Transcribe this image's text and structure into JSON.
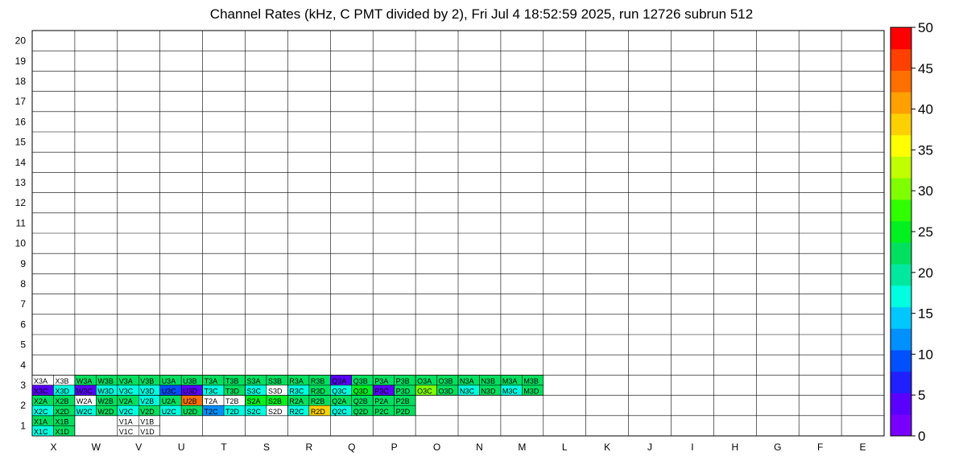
{
  "chart_data": {
    "type": "heatmap",
    "title": "Channel Rates (kHz, C PMT divided by 2), Fri Jul  4 18:52:59 2025, run 12726 subrun 512",
    "columns": [
      "X",
      "W",
      "V",
      "U",
      "T",
      "S",
      "R",
      "Q",
      "P",
      "O",
      "N",
      "M",
      "L",
      "K",
      "J",
      "I",
      "H",
      "G",
      "F",
      "E"
    ],
    "rows": [
      "1",
      "2",
      "3",
      "4",
      "5",
      "6",
      "7",
      "8",
      "9",
      "10",
      "11",
      "12",
      "13",
      "14",
      "15",
      "16",
      "17",
      "18",
      "19",
      "20"
    ],
    "zlim": [
      0,
      50
    ],
    "colorbar_ticks": [
      "0",
      "5",
      "10",
      "15",
      "20",
      "25",
      "30",
      "35",
      "40",
      "45",
      "50"
    ],
    "colormap": [
      "#7800ff",
      "#5a00ff",
      "#2020ff",
      "#0050ff",
      "#0090ff",
      "#00c8ff",
      "#00ffe0",
      "#00e8a0",
      "#00e060",
      "#00f020",
      "#30ff00",
      "#80ff00",
      "#c0ff00",
      "#ffff00",
      "#ffd000",
      "#ffa000",
      "#ff7000",
      "#ff4000",
      "#ff0000"
    ],
    "cells": [
      {
        "id": "X1A",
        "v": 22
      },
      {
        "id": "X1B",
        "v": 22
      },
      {
        "id": "X1C",
        "v": 18
      },
      {
        "id": "X1D",
        "v": 22
      },
      {
        "id": "V1A",
        "v": -1
      },
      {
        "id": "V1B",
        "v": -1
      },
      {
        "id": "V1C",
        "v": -1
      },
      {
        "id": "V1D",
        "v": -1
      },
      {
        "id": "X2A",
        "v": 22
      },
      {
        "id": "X2B",
        "v": 22
      },
      {
        "id": "X2C",
        "v": 18
      },
      {
        "id": "X2D",
        "v": 22
      },
      {
        "id": "W2A",
        "v": -1
      },
      {
        "id": "W2B",
        "v": 22
      },
      {
        "id": "W2C",
        "v": 18
      },
      {
        "id": "W2D",
        "v": 22
      },
      {
        "id": "V2A",
        "v": 22
      },
      {
        "id": "V2B",
        "v": 18
      },
      {
        "id": "V2C",
        "v": 18
      },
      {
        "id": "V2D",
        "v": 22
      },
      {
        "id": "U2A",
        "v": 22
      },
      {
        "id": "U2B",
        "v": 43
      },
      {
        "id": "U2C",
        "v": 18
      },
      {
        "id": "U2D",
        "v": 22
      },
      {
        "id": "T2A",
        "v": -1
      },
      {
        "id": "T2B",
        "v": -1
      },
      {
        "id": "T2C",
        "v": 12
      },
      {
        "id": "T2D",
        "v": 18
      },
      {
        "id": "S2A",
        "v": 26
      },
      {
        "id": "S2B",
        "v": 26
      },
      {
        "id": "S2C",
        "v": 18
      },
      {
        "id": "S2D",
        "v": -1
      },
      {
        "id": "R2A",
        "v": 22
      },
      {
        "id": "R2B",
        "v": 22
      },
      {
        "id": "R2C",
        "v": 18
      },
      {
        "id": "R2D",
        "v": 37
      },
      {
        "id": "Q2A",
        "v": 22
      },
      {
        "id": "Q2B",
        "v": 22
      },
      {
        "id": "Q2C",
        "v": 18
      },
      {
        "id": "Q2D",
        "v": 22
      },
      {
        "id": "P2A",
        "v": 22
      },
      {
        "id": "P2B",
        "v": 22
      },
      {
        "id": "P2C",
        "v": 22
      },
      {
        "id": "P2D",
        "v": 22
      },
      {
        "id": "X3A",
        "v": -1
      },
      {
        "id": "X3B",
        "v": -1
      },
      {
        "id": "X3C",
        "v": 3
      },
      {
        "id": "X3D",
        "v": 18
      },
      {
        "id": "W3A",
        "v": 22
      },
      {
        "id": "W3B",
        "v": 22
      },
      {
        "id": "W3C",
        "v": 3
      },
      {
        "id": "W3D",
        "v": 18
      },
      {
        "id": "V3A",
        "v": 22
      },
      {
        "id": "V3B",
        "v": 22
      },
      {
        "id": "V3C",
        "v": 18
      },
      {
        "id": "V3D",
        "v": 18
      },
      {
        "id": "U3A",
        "v": 22
      },
      {
        "id": "U3B",
        "v": 22
      },
      {
        "id": "U3C",
        "v": 8
      },
      {
        "id": "U3D",
        "v": 3
      },
      {
        "id": "T3A",
        "v": 22
      },
      {
        "id": "T3B",
        "v": 22
      },
      {
        "id": "T3C",
        "v": 18
      },
      {
        "id": "T3D",
        "v": 22
      },
      {
        "id": "S3A",
        "v": 22
      },
      {
        "id": "S3B",
        "v": 22
      },
      {
        "id": "S3C",
        "v": 18
      },
      {
        "id": "S3D",
        "v": -1
      },
      {
        "id": "R3A",
        "v": 22
      },
      {
        "id": "R3B",
        "v": 22
      },
      {
        "id": "R3C",
        "v": 18
      },
      {
        "id": "R3D",
        "v": 22
      },
      {
        "id": "Q3A",
        "v": 3
      },
      {
        "id": "Q3B",
        "v": 22
      },
      {
        "id": "Q3C",
        "v": 18
      },
      {
        "id": "Q3D",
        "v": 26
      },
      {
        "id": "P3A",
        "v": 22
      },
      {
        "id": "P3B",
        "v": 22
      },
      {
        "id": "P3C",
        "v": 3
      },
      {
        "id": "P3D",
        "v": 22
      },
      {
        "id": "O3A",
        "v": 22
      },
      {
        "id": "O3B",
        "v": 22
      },
      {
        "id": "O3C",
        "v": 30
      },
      {
        "id": "O3D",
        "v": 22
      },
      {
        "id": "N3A",
        "v": 22
      },
      {
        "id": "N3B",
        "v": 22
      },
      {
        "id": "N3C",
        "v": 18
      },
      {
        "id": "N3D",
        "v": 22
      },
      {
        "id": "M3A",
        "v": 22
      },
      {
        "id": "M3B",
        "v": 22
      },
      {
        "id": "M3C",
        "v": 18
      },
      {
        "id": "M3D",
        "v": 22
      }
    ]
  }
}
